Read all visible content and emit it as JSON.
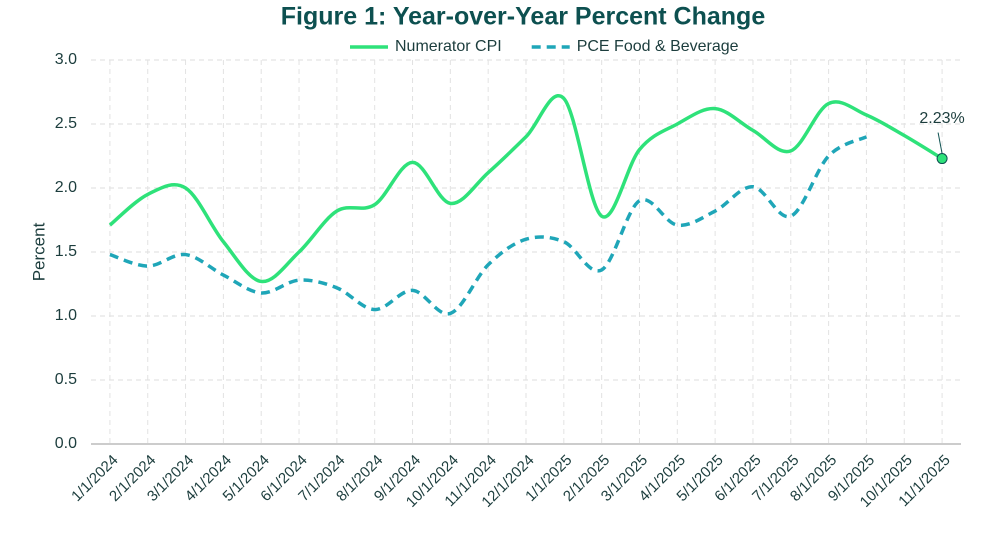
{
  "chart_data": {
    "type": "line",
    "title": "Figure 1: Year-over-Year Percent Change",
    "y_label": "Percent",
    "categories": [
      "1/1/2024",
      "2/1/2024",
      "3/1/2024",
      "4/1/2024",
      "5/1/2024",
      "6/1/2024",
      "7/1/2024",
      "8/1/2024",
      "9/1/2024",
      "10/1/2024",
      "11/1/2024",
      "12/1/2024",
      "1/1/2025",
      "2/1/2025",
      "3/1/2025",
      "4/1/2025",
      "5/1/2025",
      "6/1/2025",
      "7/1/2025",
      "8/1/2025",
      "9/1/2025",
      "10/1/2025",
      "11/1/2025"
    ],
    "series": [
      {
        "name": "Numerator CPI",
        "color": "#2ee27a",
        "dash": false,
        "values": [
          1.71,
          1.95,
          2.0,
          1.58,
          1.27,
          1.5,
          1.82,
          1.87,
          2.2,
          1.88,
          2.12,
          2.4,
          2.7,
          1.78,
          2.3,
          2.5,
          2.62,
          2.45,
          2.29,
          2.66,
          2.57,
          2.41,
          2.23
        ],
        "value_labels": [
          null,
          null,
          null,
          null,
          null,
          null,
          null,
          null,
          null,
          null,
          null,
          null,
          null,
          null,
          null,
          null,
          null,
          null,
          null,
          null,
          null,
          null,
          "2.23%"
        ]
      },
      {
        "name": "PCE Food & Beverage",
        "color": "#1fa6b8",
        "dash": true,
        "values": [
          1.48,
          1.39,
          1.48,
          1.32,
          1.18,
          1.28,
          1.22,
          1.05,
          1.2,
          1.02,
          1.4,
          1.6,
          1.58,
          1.36,
          1.9,
          1.71,
          1.82,
          2.01,
          1.78,
          2.25,
          2.4,
          null,
          null
        ]
      }
    ],
    "ylim": [
      0,
      3
    ],
    "yticks": [
      {
        "value": 0,
        "label": "0.0"
      },
      0.5,
      {
        "value": 1,
        "label": "1.0"
      },
      1.5,
      {
        "value": 2,
        "label": "2.0"
      },
      2.5,
      {
        "value": 3,
        "label": "3.0"
      }
    ],
    "grid": true,
    "legend": "top"
  }
}
